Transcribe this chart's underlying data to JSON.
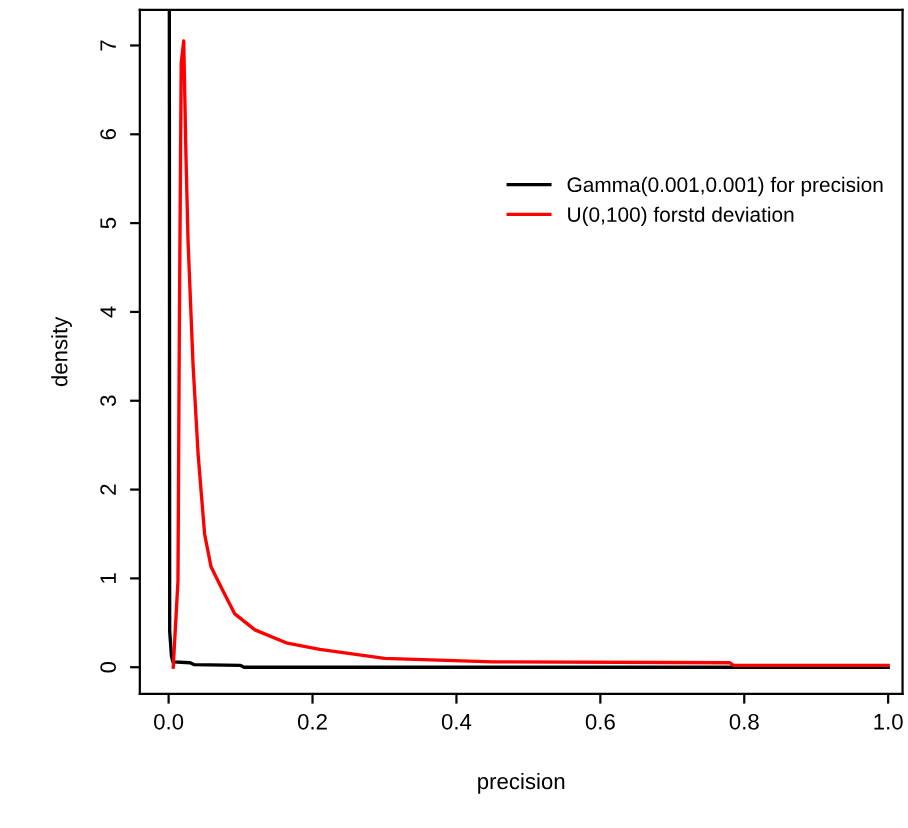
{
  "chart_data": {
    "type": "line",
    "xlabel": "precision",
    "ylabel": "density",
    "xlim": [
      -0.04,
      1.02
    ],
    "ylim": [
      -0.3,
      7.4
    ],
    "xticks": [
      {
        "value": 0,
        "label": "0.0"
      },
      0.2,
      0.4,
      0.6,
      0.8,
      {
        "value": 1,
        "label": "1.0"
      }
    ],
    "yticks": [
      0,
      1,
      2,
      3,
      4,
      5,
      6,
      7
    ],
    "grid": false,
    "legend": "right",
    "marker": "none",
    "line_style": "solid",
    "series": [
      {
        "name": "Gamma(0.001,0.001) for precision",
        "color": "#000000",
        "x": [
          0.001,
          0.0015,
          0.004,
          0.006,
          0.03,
          0.035,
          0.1,
          0.105,
          1.0
        ],
        "values": [
          7.4,
          0.4,
          0.12,
          0.06,
          0.05,
          0.03,
          0.02,
          0.0,
          0.0
        ]
      },
      {
        "name": "U(0,100) forstd deviation",
        "color": "#ff0000",
        "x": [
          0.0064,
          0.013,
          0.015,
          0.0175,
          0.021,
          0.024,
          0.027,
          0.034,
          0.041,
          0.05,
          0.059,
          0.073,
          0.092,
          0.12,
          0.165,
          0.21,
          0.3,
          0.45,
          0.78,
          0.785,
          1.0
        ],
        "values": [
          0.0,
          0.97,
          3.9,
          6.8,
          7.05,
          5.8,
          4.8,
          3.4,
          2.4,
          1.5,
          1.13,
          0.9,
          0.6,
          0.42,
          0.27,
          0.2,
          0.1,
          0.06,
          0.05,
          0.02,
          0.02
        ]
      }
    ]
  }
}
